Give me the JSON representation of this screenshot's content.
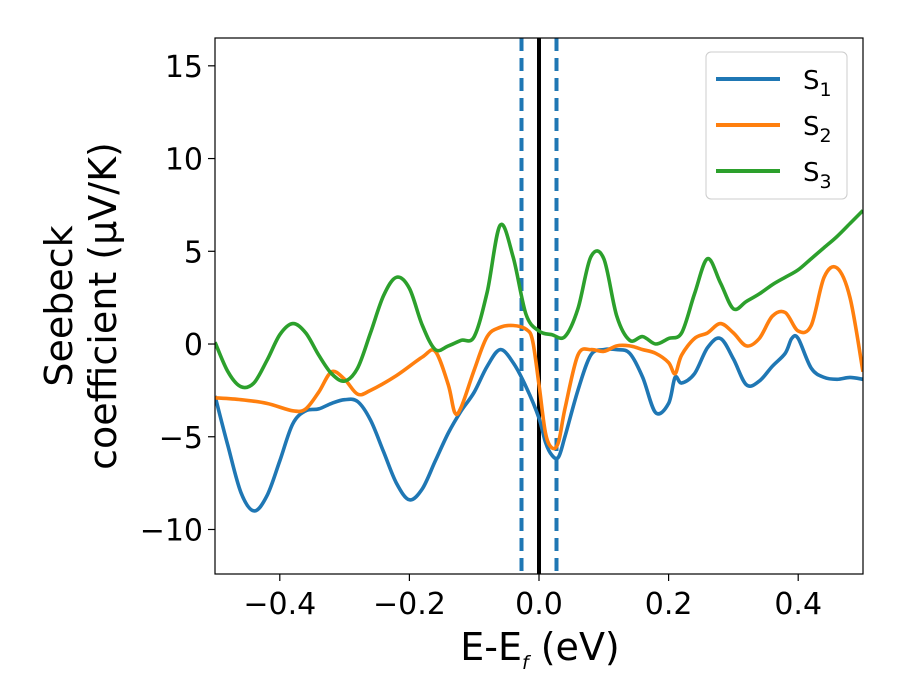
{
  "chart_data": {
    "type": "line",
    "xlabel": {
      "main": "E-E",
      "sub": "f",
      "unit": " (eV)"
    },
    "ylabel": {
      "line1": "Seebeck",
      "line2": "coefficient  (μV/K)"
    },
    "xlim": [
      -0.5,
      0.5
    ],
    "ylim": [
      -12.4,
      16.5
    ],
    "xticks": [
      -0.4,
      -0.2,
      0.0,
      0.2,
      0.4
    ],
    "xtick_labels": [
      "−0.4",
      "−0.2",
      "0.0",
      "0.2",
      "0.4"
    ],
    "yticks": [
      -10,
      -5,
      0,
      5,
      10,
      15
    ],
    "ytick_labels": [
      "−10",
      "−5",
      "0",
      "5",
      "10",
      "15"
    ],
    "legend_position": "top-right",
    "series": [
      {
        "name": "S",
        "sub": "1",
        "color": "#1f77b4",
        "points": [
          [
            -0.5,
            -2.8
          ],
          [
            -0.48,
            -5.5
          ],
          [
            -0.46,
            -8.0
          ],
          [
            -0.44,
            -9.0
          ],
          [
            -0.42,
            -8.2
          ],
          [
            -0.4,
            -6.3
          ],
          [
            -0.38,
            -4.3
          ],
          [
            -0.36,
            -3.6
          ],
          [
            -0.34,
            -3.5
          ],
          [
            -0.32,
            -3.2
          ],
          [
            -0.3,
            -3.0
          ],
          [
            -0.28,
            -3.1
          ],
          [
            -0.26,
            -4.1
          ],
          [
            -0.24,
            -5.8
          ],
          [
            -0.22,
            -7.5
          ],
          [
            -0.2,
            -8.4
          ],
          [
            -0.18,
            -7.8
          ],
          [
            -0.16,
            -6.3
          ],
          [
            -0.14,
            -4.8
          ],
          [
            -0.12,
            -3.6
          ],
          [
            -0.1,
            -2.6
          ],
          [
            -0.08,
            -1.2
          ],
          [
            -0.06,
            -0.3
          ],
          [
            -0.04,
            -1.0
          ],
          [
            -0.02,
            -2.3
          ],
          [
            0.0,
            -4.0
          ],
          [
            0.01,
            -5.3
          ],
          [
            0.02,
            -6.0
          ],
          [
            0.03,
            -6.1
          ],
          [
            0.04,
            -5.0
          ],
          [
            0.06,
            -2.5
          ],
          [
            0.08,
            -0.6
          ],
          [
            0.1,
            -0.3
          ],
          [
            0.12,
            -0.3
          ],
          [
            0.14,
            -0.5
          ],
          [
            0.16,
            -1.8
          ],
          [
            0.18,
            -3.7
          ],
          [
            0.2,
            -3.2
          ],
          [
            0.21,
            -1.8
          ],
          [
            0.22,
            -2.1
          ],
          [
            0.24,
            -1.6
          ],
          [
            0.26,
            -0.2
          ],
          [
            0.28,
            0.3
          ],
          [
            0.3,
            -0.8
          ],
          [
            0.32,
            -2.2
          ],
          [
            0.34,
            -2.0
          ],
          [
            0.36,
            -1.2
          ],
          [
            0.38,
            -0.5
          ],
          [
            0.39,
            0.3
          ],
          [
            0.4,
            0.3
          ],
          [
            0.42,
            -1.3
          ],
          [
            0.44,
            -1.8
          ],
          [
            0.46,
            -1.9
          ],
          [
            0.48,
            -1.8
          ],
          [
            0.5,
            -1.9
          ]
        ]
      },
      {
        "name": "S",
        "sub": "2",
        "color": "#ff7f0e",
        "points": [
          [
            -0.5,
            -2.9
          ],
          [
            -0.46,
            -3.0
          ],
          [
            -0.42,
            -3.2
          ],
          [
            -0.38,
            -3.6
          ],
          [
            -0.36,
            -3.5
          ],
          [
            -0.34,
            -2.6
          ],
          [
            -0.32,
            -1.5
          ],
          [
            -0.3,
            -1.9
          ],
          [
            -0.28,
            -2.7
          ],
          [
            -0.26,
            -2.5
          ],
          [
            -0.22,
            -1.7
          ],
          [
            -0.18,
            -0.7
          ],
          [
            -0.16,
            -0.4
          ],
          [
            -0.14,
            -2.2
          ],
          [
            -0.13,
            -3.7
          ],
          [
            -0.12,
            -3.4
          ],
          [
            -0.1,
            -1.4
          ],
          [
            -0.08,
            0.4
          ],
          [
            -0.06,
            0.9
          ],
          [
            -0.04,
            1.0
          ],
          [
            -0.02,
            0.8
          ],
          [
            -0.01,
            0.2
          ],
          [
            0.0,
            -2.2
          ],
          [
            0.01,
            -4.8
          ],
          [
            0.02,
            -5.6
          ],
          [
            0.03,
            -5.3
          ],
          [
            0.04,
            -3.5
          ],
          [
            0.06,
            -0.6
          ],
          [
            0.08,
            -0.3
          ],
          [
            0.1,
            -0.4
          ],
          [
            0.12,
            -0.1
          ],
          [
            0.14,
            -0.1
          ],
          [
            0.16,
            -0.3
          ],
          [
            0.18,
            -0.5
          ],
          [
            0.2,
            -1.0
          ],
          [
            0.21,
            -1.6
          ],
          [
            0.22,
            -0.6
          ],
          [
            0.24,
            0.3
          ],
          [
            0.26,
            0.6
          ],
          [
            0.28,
            1.1
          ],
          [
            0.3,
            0.6
          ],
          [
            0.32,
            -0.1
          ],
          [
            0.34,
            0.3
          ],
          [
            0.36,
            1.5
          ],
          [
            0.38,
            1.7
          ],
          [
            0.4,
            0.7
          ],
          [
            0.42,
            1.0
          ],
          [
            0.44,
            3.6
          ],
          [
            0.46,
            4.1
          ],
          [
            0.48,
            2.5
          ],
          [
            0.5,
            -1.5
          ]
        ]
      },
      {
        "name": "S",
        "sub": "3",
        "color": "#2ca02c",
        "points": [
          [
            -0.5,
            0.1
          ],
          [
            -0.48,
            -1.5
          ],
          [
            -0.46,
            -2.3
          ],
          [
            -0.44,
            -2.1
          ],
          [
            -0.42,
            -0.9
          ],
          [
            -0.4,
            0.5
          ],
          [
            -0.38,
            1.1
          ],
          [
            -0.36,
            0.6
          ],
          [
            -0.34,
            -0.6
          ],
          [
            -0.32,
            -1.6
          ],
          [
            -0.3,
            -2.0
          ],
          [
            -0.28,
            -1.3
          ],
          [
            -0.26,
            0.6
          ],
          [
            -0.24,
            2.6
          ],
          [
            -0.22,
            3.6
          ],
          [
            -0.2,
            3.0
          ],
          [
            -0.18,
            1.0
          ],
          [
            -0.16,
            -0.3
          ],
          [
            -0.14,
            -0.1
          ],
          [
            -0.12,
            0.2
          ],
          [
            -0.1,
            0.4
          ],
          [
            -0.08,
            2.8
          ],
          [
            -0.06,
            6.4
          ],
          [
            -0.04,
            4.7
          ],
          [
            -0.02,
            1.6
          ],
          [
            0.0,
            0.7
          ],
          [
            0.02,
            0.5
          ],
          [
            0.04,
            0.4
          ],
          [
            0.06,
            1.9
          ],
          [
            0.08,
            4.7
          ],
          [
            0.1,
            4.6
          ],
          [
            0.12,
            1.5
          ],
          [
            0.14,
            0.2
          ],
          [
            0.16,
            0.4
          ],
          [
            0.18,
            0.0
          ],
          [
            0.2,
            0.3
          ],
          [
            0.22,
            0.6
          ],
          [
            0.24,
            2.7
          ],
          [
            0.26,
            4.6
          ],
          [
            0.28,
            3.3
          ],
          [
            0.3,
            1.9
          ],
          [
            0.32,
            2.3
          ],
          [
            0.34,
            2.7
          ],
          [
            0.36,
            3.2
          ],
          [
            0.38,
            3.6
          ],
          [
            0.4,
            4.0
          ],
          [
            0.42,
            4.6
          ],
          [
            0.44,
            5.2
          ],
          [
            0.46,
            5.8
          ],
          [
            0.48,
            6.5
          ],
          [
            0.5,
            7.2
          ]
        ]
      }
    ],
    "vlines": [
      {
        "x": 0.0,
        "color": "#000000",
        "style": "solid"
      },
      {
        "x": -0.027,
        "color": "#1f77b4",
        "style": "dashed"
      },
      {
        "x": 0.027,
        "color": "#1f77b4",
        "style": "dashed"
      }
    ]
  }
}
